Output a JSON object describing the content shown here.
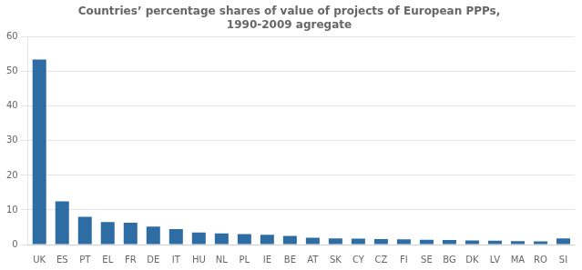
{
  "chart_data": {
    "type": "bar",
    "title": "Countries’ percentage shares of value of projects of European PPPs,\n1990-2009 agregate",
    "categories": [
      "UK",
      "ES",
      "PT",
      "EL",
      "FR",
      "DE",
      "IT",
      "HU",
      "NL",
      "PL",
      "IE",
      "BE",
      "AT",
      "SK",
      "CY",
      "CZ",
      "FI",
      "SE",
      "BG",
      "DK",
      "LV",
      "MA",
      "RO",
      "SI"
    ],
    "values": [
      53.5,
      12.5,
      8.0,
      6.5,
      6.3,
      5.2,
      4.5,
      3.5,
      3.2,
      3.0,
      2.8,
      2.5,
      2.0,
      1.8,
      1.7,
      1.6,
      1.5,
      1.4,
      1.3,
      1.2,
      1.1,
      1.0,
      0.9,
      1.8
    ],
    "color": "#2E6DA4",
    "ylim": [
      0,
      60
    ],
    "yticks": [
      0,
      10,
      20,
      30,
      40,
      50,
      60
    ],
    "grid": true
  }
}
